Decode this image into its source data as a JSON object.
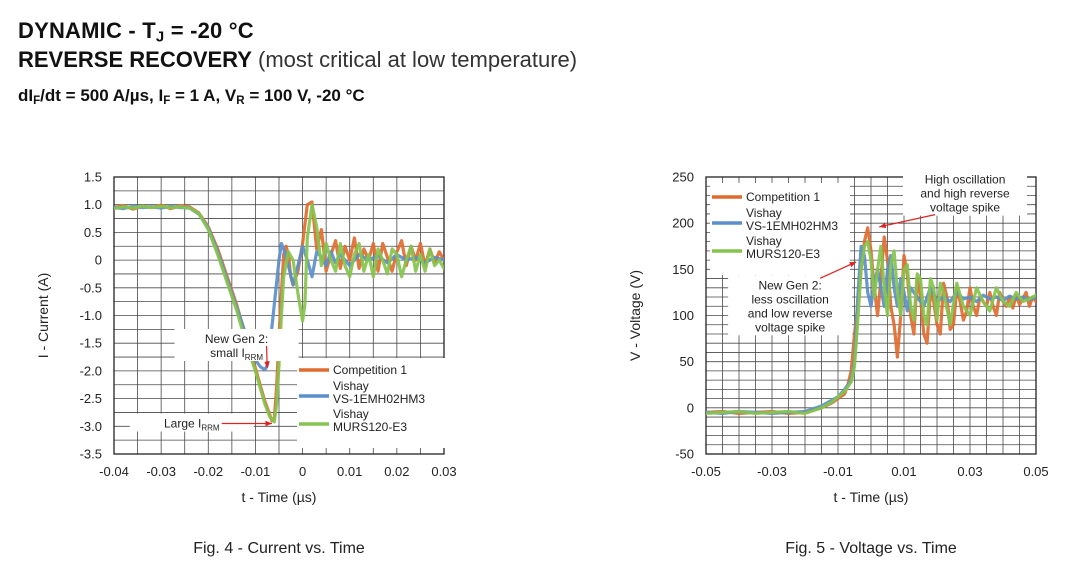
{
  "header": {
    "line1": {
      "a": "DYNAMIC - T",
      "sub": "J",
      "b": " = -20 °C"
    },
    "line2": {
      "bold": "REVERSE RECOVERY",
      "note": " (most critical at low temperature)"
    },
    "line3": {
      "p1": "dI",
      "s1": "F",
      "p2": "/dt = 500 A/µs, I",
      "s2": "F",
      "p3": " = 1 A, V",
      "s3": "R",
      "p4": " = 100 V, -20 °C"
    }
  },
  "colors": {
    "competition": "#e06b30",
    "vishay_hm3": "#5b8fc9",
    "vishay_murs": "#85c44e"
  },
  "chart_data": [
    {
      "type": "line",
      "caption": "Fig. 4 - Current vs. Time",
      "xlabel": "t - Time (µs)",
      "ylabel": "I - Current (A)",
      "xlim": [
        -0.04,
        0.03
      ],
      "ylim": [
        -3.5,
        1.5
      ],
      "xticks": [
        "-0.04",
        "-0.03",
        "-0.02",
        "-0.01",
        "0",
        "0.01",
        "0.02",
        "0.03"
      ],
      "yticks": [
        "1.5",
        "1.0",
        "0.5",
        "0",
        "-0.5",
        "-1.0",
        "-1.5",
        "-2.0",
        "-2.5",
        "-3.0",
        "-3.5"
      ],
      "grid": true,
      "legend": {
        "placement": "bottom-right",
        "entries": [
          {
            "lines": [
              "Competition 1"
            ],
            "color": "#e06b30"
          },
          {
            "lines": [
              "Vishay",
              "VS-1EMH02HM3"
            ],
            "color": "#5b8fc9"
          },
          {
            "lines": [
              "Vishay",
              "MURS120-E3"
            ],
            "color": "#85c44e"
          }
        ]
      },
      "annotations": [
        {
          "lines": [
            "New Gen 2:",
            "small I"
          ],
          "sub": "RRM",
          "x": -0.014,
          "y": -1.55,
          "tx": -0.0075,
          "ty": -1.95
        },
        {
          "lines": [
            "Large I"
          ],
          "sub": "RRM",
          "x": -0.0235,
          "y": -2.95,
          "tx": -0.0065,
          "ty": -2.95
        }
      ],
      "series": [
        {
          "name": "Competition 1",
          "color": "#e06b30",
          "x": [
            -0.04,
            -0.038,
            -0.036,
            -0.034,
            -0.032,
            -0.03,
            -0.028,
            -0.026,
            -0.024,
            -0.022,
            -0.02,
            -0.018,
            -0.016,
            -0.014,
            -0.012,
            -0.01,
            -0.009,
            -0.008,
            -0.007,
            -0.0065,
            -0.006,
            -0.0055,
            -0.005,
            -0.0045,
            -0.004,
            -0.0035,
            -0.003,
            -0.0025,
            -0.002,
            -0.001,
            0,
            0.001,
            0.002,
            0.003,
            0.004,
            0.005,
            0.006,
            0.007,
            0.008,
            0.009,
            0.01,
            0.011,
            0.012,
            0.013,
            0.014,
            0.015,
            0.016,
            0.017,
            0.018,
            0.019,
            0.02,
            0.021,
            0.022,
            0.023,
            0.024,
            0.025,
            0.026,
            0.027,
            0.028,
            0.029,
            0.03
          ],
          "y": [
            0.95,
            0.98,
            0.92,
            0.97,
            0.95,
            0.99,
            0.93,
            0.98,
            0.96,
            0.85,
            0.6,
            0.2,
            -0.3,
            -0.8,
            -1.4,
            -1.95,
            -2.25,
            -2.55,
            -2.78,
            -2.9,
            -2.85,
            -2.3,
            -1.4,
            -0.6,
            0.1,
            0.25,
            0.1,
            -0.3,
            -0.45,
            -0.2,
            0.3,
            1.0,
            1.05,
            0.2,
            0.55,
            -0.2,
            0.1,
            0.35,
            -0.15,
            0.25,
            0.0,
            0.4,
            -0.15,
            0.2,
            0.0,
            0.3,
            -0.2,
            0.3,
            0.05,
            -0.2,
            0.15,
            0.35,
            -0.1,
            0.25,
            0.0,
            0.3,
            -0.1,
            0.2,
            -0.05,
            0.15,
            0.0
          ]
        },
        {
          "name": "Vishay VS-1EMH02HM3",
          "color": "#5b8fc9",
          "x": [
            -0.04,
            -0.038,
            -0.036,
            -0.034,
            -0.032,
            -0.03,
            -0.028,
            -0.026,
            -0.024,
            -0.022,
            -0.02,
            -0.018,
            -0.016,
            -0.014,
            -0.012,
            -0.01,
            -0.009,
            -0.008,
            -0.0075,
            -0.007,
            -0.006,
            -0.005,
            -0.0045,
            -0.004,
            -0.003,
            -0.002,
            -0.001,
            0,
            0.001,
            0.002,
            0.003,
            0.004,
            0.005,
            0.006,
            0.007,
            0.008,
            0.01,
            0.012,
            0.014,
            0.016,
            0.018,
            0.02,
            0.022,
            0.024,
            0.026,
            0.028,
            0.03
          ],
          "y": [
            0.95,
            0.93,
            0.97,
            0.95,
            0.96,
            0.94,
            0.97,
            0.95,
            0.94,
            0.83,
            0.58,
            0.15,
            -0.35,
            -0.85,
            -1.35,
            -1.8,
            -1.92,
            -1.98,
            -1.9,
            -1.6,
            -0.8,
            0.0,
            0.3,
            0.2,
            -0.1,
            -0.45,
            -0.1,
            0.25,
            0.0,
            -0.3,
            0.15,
            0.05,
            -0.1,
            0.15,
            -0.05,
            0.1,
            -0.1,
            0.1,
            0.0,
            0.08,
            -0.05,
            0.1,
            0.0,
            0.05,
            -0.05,
            0.05,
            0.0
          ]
        },
        {
          "name": "Vishay MURS120-E3",
          "color": "#85c44e",
          "x": [
            -0.04,
            -0.038,
            -0.036,
            -0.034,
            -0.032,
            -0.03,
            -0.028,
            -0.026,
            -0.024,
            -0.022,
            -0.02,
            -0.018,
            -0.016,
            -0.014,
            -0.012,
            -0.01,
            -0.009,
            -0.008,
            -0.007,
            -0.006,
            -0.0055,
            -0.005,
            -0.0045,
            -0.004,
            -0.003,
            -0.002,
            -0.001,
            0,
            0.0005,
            0.001,
            0.002,
            0.003,
            0.004,
            0.005,
            0.006,
            0.007,
            0.008,
            0.009,
            0.01,
            0.011,
            0.012,
            0.013,
            0.014,
            0.015,
            0.016,
            0.017,
            0.018,
            0.019,
            0.02,
            0.021,
            0.022,
            0.023,
            0.024,
            0.025,
            0.026,
            0.027,
            0.028,
            0.029,
            0.03
          ],
          "y": [
            0.93,
            0.96,
            0.94,
            0.97,
            0.95,
            0.97,
            0.95,
            0.96,
            0.94,
            0.84,
            0.55,
            0.1,
            -0.4,
            -0.9,
            -1.5,
            -2.0,
            -2.3,
            -2.6,
            -2.82,
            -2.92,
            -2.6,
            -1.9,
            -1.0,
            -0.3,
            0.15,
            0.0,
            -0.6,
            -1.1,
            -0.8,
            0.4,
            1.0,
            0.6,
            -0.1,
            0.3,
            0.0,
            -0.2,
            0.3,
            -0.1,
            -0.3,
            0.1,
            0.3,
            -0.2,
            0.1,
            -0.3,
            0.2,
            0.0,
            -0.25,
            0.2,
            0.1,
            -0.3,
            0.0,
            0.25,
            -0.2,
            0.1,
            -0.2,
            0.2,
            -0.1,
            0.0,
            -0.15
          ]
        }
      ]
    },
    {
      "type": "line",
      "caption": "Fig. 5 - Voltage vs. Time",
      "xlabel": "t - Time (µs)",
      "ylabel": "V - Voltage (V)",
      "xlim": [
        -0.05,
        0.05
      ],
      "ylim": [
        -50,
        250
      ],
      "xticks": [
        "-0.05",
        "-0.03",
        "-0.01",
        "0.01",
        "0.03",
        "0.05"
      ],
      "yticks": [
        "250",
        "200",
        "150",
        "100",
        "50",
        "0",
        "-50"
      ],
      "grid": true,
      "legend": {
        "placement": "top-left",
        "entries": [
          {
            "lines": [
              "Competition 1"
            ],
            "color": "#e06b30"
          },
          {
            "lines": [
              "Vishay",
              "VS-1EMH02HM3"
            ],
            "color": "#5b8fc9"
          },
          {
            "lines": [
              "Vishay",
              "MURS120-E3"
            ],
            "color": "#85c44e"
          }
        ]
      },
      "annotations": [
        {
          "lines": [
            "High oscillation",
            "and high reverse",
            "voltage spike"
          ],
          "x": 0.0285,
          "y": 232,
          "tx": 0.0025,
          "ty": 196
        },
        {
          "lines": [
            "New Gen 2:",
            "less oscillation",
            "and low reverse",
            "voltage spike"
          ],
          "x": -0.0245,
          "y": 110,
          "tx": -0.0045,
          "ty": 158
        }
      ],
      "series": [
        {
          "name": "Competition 1",
          "color": "#e06b30",
          "x": [
            -0.05,
            -0.045,
            -0.04,
            -0.035,
            -0.03,
            -0.025,
            -0.02,
            -0.015,
            -0.012,
            -0.01,
            -0.008,
            -0.007,
            -0.006,
            -0.005,
            -0.004,
            -0.003,
            -0.002,
            -0.001,
            0,
            0.001,
            0.002,
            0.003,
            0.004,
            0.005,
            0.006,
            0.007,
            0.008,
            0.009,
            0.01,
            0.011,
            0.012,
            0.013,
            0.014,
            0.015,
            0.016,
            0.017,
            0.018,
            0.019,
            0.02,
            0.021,
            0.022,
            0.023,
            0.024,
            0.025,
            0.026,
            0.027,
            0.028,
            0.029,
            0.03,
            0.031,
            0.032,
            0.033,
            0.034,
            0.035,
            0.036,
            0.037,
            0.038,
            0.039,
            0.04,
            0.041,
            0.042,
            0.043,
            0.044,
            0.045,
            0.046,
            0.047,
            0.048,
            0.049,
            0.05
          ],
          "y": [
            -5,
            -4,
            -6,
            -5,
            -4,
            -6,
            -5,
            0,
            5,
            10,
            15,
            25,
            40,
            80,
            110,
            150,
            180,
            195,
            170,
            130,
            100,
            140,
            185,
            160,
            110,
            90,
            55,
            100,
            165,
            145,
            100,
            80,
            140,
            120,
            80,
            70,
            125,
            115,
            90,
            80,
            135,
            120,
            85,
            90,
            130,
            115,
            95,
            105,
            130,
            110,
            100,
            120,
            115,
            110,
            125,
            110,
            100,
            125,
            115,
            110,
            120,
            108,
            122,
            112,
            118,
            125,
            110,
            120,
            115
          ]
        },
        {
          "name": "Vishay VS-1EMH02HM3",
          "color": "#5b8fc9",
          "x": [
            -0.05,
            -0.045,
            -0.04,
            -0.035,
            -0.03,
            -0.025,
            -0.02,
            -0.015,
            -0.012,
            -0.01,
            -0.008,
            -0.006,
            -0.005,
            -0.004,
            -0.003,
            -0.002,
            -0.001,
            0,
            0.001,
            0.002,
            0.003,
            0.004,
            0.005,
            0.006,
            0.007,
            0.008,
            0.009,
            0.01,
            0.011,
            0.012,
            0.014,
            0.016,
            0.018,
            0.02,
            0.022,
            0.024,
            0.026,
            0.028,
            0.03,
            0.032,
            0.034,
            0.036,
            0.038,
            0.04,
            0.042,
            0.044,
            0.046,
            0.048,
            0.05
          ],
          "y": [
            -5,
            -6,
            -4,
            -5,
            -6,
            -5,
            -4,
            2,
            8,
            12,
            20,
            30,
            50,
            120,
            175,
            165,
            125,
            110,
            135,
            150,
            130,
            110,
            150,
            165,
            130,
            110,
            140,
            125,
            105,
            130,
            120,
            110,
            130,
            115,
            120,
            115,
            125,
            118,
            120,
            115,
            122,
            118,
            120,
            116,
            121,
            118,
            120,
            117,
            120
          ]
        },
        {
          "name": "Vishay MURS120-E3",
          "color": "#85c44e",
          "x": [
            -0.05,
            -0.045,
            -0.04,
            -0.035,
            -0.03,
            -0.025,
            -0.02,
            -0.015,
            -0.012,
            -0.01,
            -0.008,
            -0.006,
            -0.005,
            -0.004,
            -0.003,
            -0.002,
            -0.001,
            0,
            0.001,
            0.002,
            0.003,
            0.004,
            0.005,
            0.006,
            0.007,
            0.008,
            0.009,
            0.01,
            0.011,
            0.012,
            0.013,
            0.014,
            0.015,
            0.016,
            0.017,
            0.018,
            0.019,
            0.02,
            0.021,
            0.022,
            0.024,
            0.026,
            0.028,
            0.03,
            0.032,
            0.034,
            0.036,
            0.038,
            0.04,
            0.042,
            0.044,
            0.046,
            0.048,
            0.05
          ],
          "y": [
            -6,
            -5,
            -4,
            -6,
            -5,
            -4,
            -6,
            0,
            6,
            12,
            18,
            28,
            45,
            95,
            150,
            175,
            180,
            160,
            120,
            150,
            175,
            130,
            100,
            155,
            170,
            125,
            100,
            150,
            155,
            110,
            95,
            145,
            140,
            100,
            90,
            140,
            130,
            95,
            135,
            125,
            90,
            135,
            110,
            100,
            130,
            115,
            105,
            130,
            115,
            110,
            125,
            115,
            118,
            122
          ]
        }
      ]
    }
  ]
}
